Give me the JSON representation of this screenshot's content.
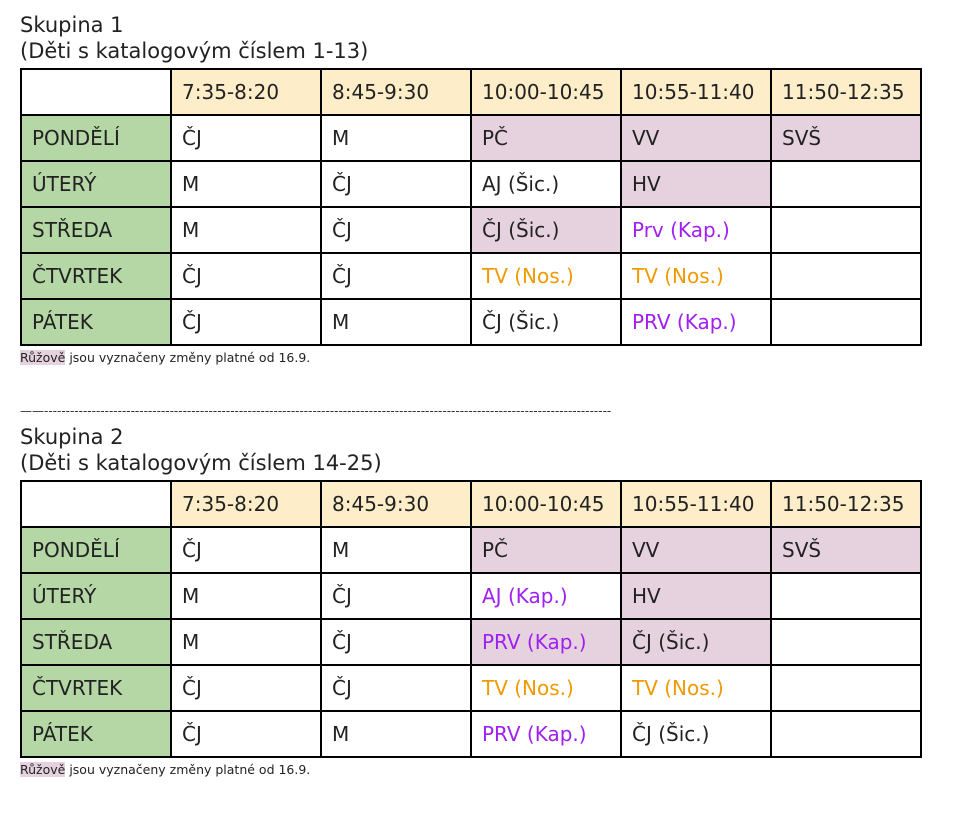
{
  "group1": {
    "title": "Skupina 1",
    "subtitle": "(Děti s katalogovým číslem 1-13)",
    "times": [
      "7:35-8:20",
      "8:45-9:30",
      "10:00-10:45",
      "10:55-11:40",
      "11:50-12:35"
    ],
    "rows": [
      {
        "day": "PONDĚLÍ",
        "cells": [
          {
            "text": "ČJ",
            "bg": "white",
            "color": "black"
          },
          {
            "text": "M",
            "bg": "white",
            "color": "black"
          },
          {
            "text": "PČ",
            "bg": "pink",
            "color": "black"
          },
          {
            "text": "VV",
            "bg": "pink",
            "color": "black"
          },
          {
            "text": "SVŠ",
            "bg": "pink",
            "color": "black"
          }
        ]
      },
      {
        "day": "ÚTERÝ",
        "cells": [
          {
            "text": "M",
            "bg": "white",
            "color": "black"
          },
          {
            "text": "ČJ",
            "bg": "white",
            "color": "black"
          },
          {
            "text": "AJ (Šic.)",
            "bg": "white",
            "color": "black"
          },
          {
            "text": "HV",
            "bg": "pink",
            "color": "black"
          },
          {
            "text": "",
            "bg": "white",
            "color": "black"
          }
        ]
      },
      {
        "day": "STŘEDA",
        "cells": [
          {
            "text": "M",
            "bg": "white",
            "color": "black"
          },
          {
            "text": "ČJ",
            "bg": "white",
            "color": "black"
          },
          {
            "text": "ČJ (Šic.)",
            "bg": "pink",
            "color": "black"
          },
          {
            "text": "Prv (Kap.)",
            "bg": "white",
            "color": "purple"
          },
          {
            "text": "",
            "bg": "white",
            "color": "black"
          }
        ]
      },
      {
        "day": "ČTVRTEK",
        "cells": [
          {
            "text": "ČJ",
            "bg": "white",
            "color": "black"
          },
          {
            "text": "ČJ",
            "bg": "white",
            "color": "black"
          },
          {
            "text": "TV (Nos.)",
            "bg": "white",
            "color": "orange"
          },
          {
            "text": "TV (Nos.)",
            "bg": "white",
            "color": "orange"
          },
          {
            "text": "",
            "bg": "white",
            "color": "black"
          }
        ]
      },
      {
        "day": "PÁTEK",
        "cells": [
          {
            "text": "ČJ",
            "bg": "white",
            "color": "black"
          },
          {
            "text": "M",
            "bg": "white",
            "color": "black"
          },
          {
            "text": "ČJ (Šic.)",
            "bg": "white",
            "color": "black"
          },
          {
            "text": "PRV (Kap.)",
            "bg": "white",
            "color": "purple"
          },
          {
            "text": "",
            "bg": "white",
            "color": "black"
          }
        ]
      }
    ],
    "note_highlight": "Růžově",
    "note_text": " jsou vyznačeny změny platné od 16.9."
  },
  "divider": "——-----------------------------------------------------------------------------------------------------------------------------------",
  "group2": {
    "title": "Skupina 2",
    "subtitle": "(Děti s katalogovým číslem 14-25)",
    "times": [
      "7:35-8:20",
      "8:45-9:30",
      "10:00-10:45",
      "10:55-11:40",
      "11:50-12:35"
    ],
    "rows": [
      {
        "day": "PONDĚLÍ",
        "cells": [
          {
            "text": "ČJ",
            "bg": "white",
            "color": "black"
          },
          {
            "text": "M",
            "bg": "white",
            "color": "black"
          },
          {
            "text": "PČ",
            "bg": "pink",
            "color": "black"
          },
          {
            "text": "VV",
            "bg": "pink",
            "color": "black"
          },
          {
            "text": "SVŠ",
            "bg": "pink",
            "color": "black"
          }
        ]
      },
      {
        "day": "ÚTERÝ",
        "cells": [
          {
            "text": "M",
            "bg": "white",
            "color": "black"
          },
          {
            "text": "ČJ",
            "bg": "white",
            "color": "black"
          },
          {
            "text": "AJ (Kap.)",
            "bg": "white",
            "color": "purple"
          },
          {
            "text": "HV",
            "bg": "pink",
            "color": "black"
          },
          {
            "text": "",
            "bg": "white",
            "color": "black"
          }
        ]
      },
      {
        "day": "STŘEDA",
        "cells": [
          {
            "text": "M",
            "bg": "white",
            "color": "black"
          },
          {
            "text": "ČJ",
            "bg": "white",
            "color": "black"
          },
          {
            "text": "PRV (Kap.)",
            "bg": "pink",
            "color": "purple"
          },
          {
            "text": "ČJ (Šic.)",
            "bg": "pink",
            "color": "black"
          },
          {
            "text": "",
            "bg": "white",
            "color": "black"
          }
        ]
      },
      {
        "day": "ČTVRTEK",
        "cells": [
          {
            "text": "ČJ",
            "bg": "white",
            "color": "black"
          },
          {
            "text": "ČJ",
            "bg": "white",
            "color": "black"
          },
          {
            "text": "TV (Nos.)",
            "bg": "white",
            "color": "orange"
          },
          {
            "text": "TV (Nos.)",
            "bg": "white",
            "color": "orange"
          },
          {
            "text": "",
            "bg": "white",
            "color": "black"
          }
        ]
      },
      {
        "day": "PÁTEK",
        "cells": [
          {
            "text": "ČJ",
            "bg": "white",
            "color": "black"
          },
          {
            "text": "M",
            "bg": "white",
            "color": "black"
          },
          {
            "text": "PRV (Kap.)",
            "bg": "white",
            "color": "purple"
          },
          {
            "text": "ČJ (Šic.)",
            "bg": "white",
            "color": "black"
          },
          {
            "text": "",
            "bg": "white",
            "color": "black"
          }
        ]
      }
    ],
    "note_highlight": "Růžově",
    "note_text": " jsou vyznačeny změny platné od 16.9."
  },
  "colors": {
    "time_header": "#fdeec9",
    "day_header": "#b5d7a5",
    "pink": "#e6d2de",
    "purple": "#a020f0",
    "orange": "#f09a00"
  }
}
